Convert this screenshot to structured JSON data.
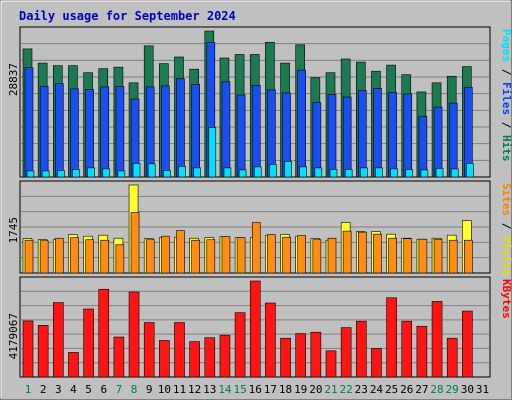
{
  "chart_data": [
    {
      "type": "bar",
      "title": "Daily usage for September 2024",
      "ymax_label": "28837",
      "legend": [
        {
          "name": "Hits",
          "color": "#008040"
        },
        {
          "name": "Files",
          "color": "#0040ff"
        },
        {
          "name": "Pages",
          "color": "#00e0ff"
        }
      ],
      "categories": [
        "1",
        "2",
        "3",
        "4",
        "5",
        "6",
        "7",
        "8",
        "9",
        "10",
        "11",
        "12",
        "13",
        "14",
        "15",
        "16",
        "17",
        "18",
        "19",
        "20",
        "21",
        "22",
        "23",
        "24",
        "25",
        "26",
        "27",
        "28",
        "29",
        "30",
        "31"
      ],
      "series": [
        {
          "name": "Hits",
          "color": "#1c7a50",
          "values": [
            25300,
            22500,
            22000,
            22000,
            20600,
            21400,
            21700,
            18600,
            25900,
            22400,
            23700,
            21300,
            28837,
            23500,
            24200,
            24200,
            26600,
            22500,
            26100,
            19600,
            20600,
            23300,
            22700,
            20900,
            22100,
            20200,
            16800,
            18600,
            19900,
            21800,
            0
          ]
        },
        {
          "name": "Files",
          "color": "#1a4ef0",
          "values": [
            21600,
            17900,
            18500,
            17400,
            17300,
            17800,
            17900,
            15400,
            17800,
            18000,
            19400,
            18300,
            26600,
            18800,
            16200,
            18100,
            17200,
            16600,
            21100,
            14700,
            16300,
            15800,
            17100,
            17500,
            16700,
            16400,
            12000,
            13800,
            14600,
            17700,
            0
          ]
        },
        {
          "name": "Pages",
          "color": "#00e0ff",
          "values": [
            1200,
            1200,
            1300,
            1500,
            1800,
            1600,
            1200,
            2700,
            2600,
            1300,
            2100,
            1800,
            9800,
            1800,
            1400,
            2000,
            2500,
            3100,
            2000,
            1800,
            1500,
            1500,
            1800,
            1800,
            1600,
            1500,
            1400,
            1700,
            1600,
            2700,
            0
          ]
        }
      ],
      "value_labels": [
        "1",
        "2",
        "3",
        "4",
        "5",
        "6",
        "7",
        "8",
        "9",
        "10",
        "11",
        "12",
        "13",
        "14",
        "15",
        "16",
        "17",
        "18",
        "19",
        "20",
        "21",
        "22",
        "23",
        "24",
        "25",
        "26",
        "27",
        "28",
        "29",
        "30",
        "31"
      ]
    },
    {
      "type": "bar",
      "ymax_label": "1745",
      "legend": [
        {
          "name": "Visits",
          "color": "#e0e000"
        },
        {
          "name": "Sites",
          "color": "#ff8000"
        }
      ],
      "categories": [
        "1",
        "2",
        "3",
        "4",
        "5",
        "6",
        "7",
        "8",
        "9",
        "10",
        "11",
        "12",
        "13",
        "14",
        "15",
        "16",
        "17",
        "18",
        "19",
        "20",
        "21",
        "22",
        "23",
        "24",
        "25",
        "26",
        "27",
        "28",
        "29",
        "30",
        "31"
      ],
      "series": [
        {
          "name": "Visits",
          "color": "#ffff30",
          "values": [
            680,
            660,
            660,
            760,
            730,
            750,
            690,
            1745,
            680,
            700,
            710,
            690,
            700,
            720,
            700,
            700,
            750,
            760,
            730,
            680,
            650,
            1000,
            820,
            820,
            770,
            690,
            670,
            690,
            750,
            1040,
            0
          ]
        },
        {
          "name": "Sites",
          "color": "#ff8c14",
          "values": [
            650,
            640,
            690,
            700,
            660,
            650,
            560,
            1200,
            660,
            730,
            840,
            650,
            660,
            720,
            700,
            1000,
            760,
            710,
            740,
            660,
            690,
            830,
            810,
            770,
            690,
            680,
            670,
            670,
            650,
            650,
            0
          ]
        }
      ]
    },
    {
      "type": "bar",
      "ymax_label": "4179067",
      "legend": [
        {
          "name": "KBytes",
          "color": "#ff0000"
        }
      ],
      "categories": [
        "1",
        "2",
        "3",
        "4",
        "5",
        "6",
        "7",
        "8",
        "9",
        "10",
        "11",
        "12",
        "13",
        "14",
        "15",
        "16",
        "17",
        "18",
        "19",
        "20",
        "21",
        "22",
        "23",
        "24",
        "25",
        "26",
        "27",
        "28",
        "29",
        "30",
        "31"
      ],
      "series": [
        {
          "name": "KBytes",
          "color": "#ff1414",
          "values": [
            2440,
            2250,
            3240,
            1070,
            2960,
            3820,
            1740,
            3700,
            2370,
            1590,
            2370,
            1540,
            1710,
            1820,
            2800,
            4179,
            3220,
            1690,
            1890,
            1950,
            1140,
            2150,
            2430,
            1240,
            3450,
            2430,
            2210,
            3290,
            1690,
            2870,
            0
          ]
        }
      ]
    }
  ],
  "xaxis": {
    "labels": [
      "1",
      "2",
      "3",
      "4",
      "5",
      "6",
      "7",
      "8",
      "9",
      "10",
      "11",
      "12",
      "13",
      "14",
      "15",
      "16",
      "17",
      "18",
      "19",
      "20",
      "21",
      "22",
      "23",
      "24",
      "25",
      "26",
      "27",
      "28",
      "29",
      "30",
      "31"
    ],
    "weekend_days": [
      "1",
      "7",
      "8",
      "14",
      "15",
      "21",
      "22",
      "28",
      "29"
    ],
    "weekday_color": "#000000",
    "weekend_color": "#008040"
  },
  "colors": {
    "title": "#0000c0",
    "panel_bg": "#c0c0c0",
    "grid": "#808080"
  }
}
